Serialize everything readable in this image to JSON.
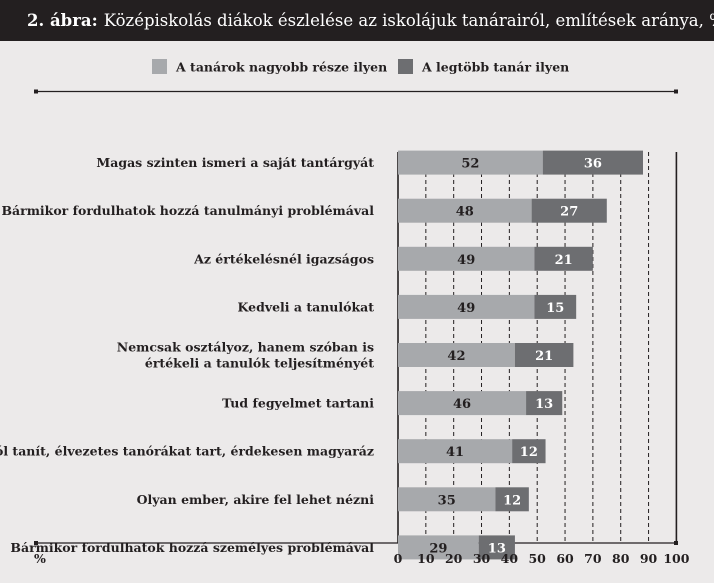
{
  "figure_label": "2. ábra:",
  "title": "Középiskolás diákok észlelése az iskolájuk tanárairól, említések aránya, %",
  "colors": {
    "series1": "#a7a9ac",
    "series2": "#6d6e71",
    "title_bg": "#231f20",
    "panel_bg": "#eceaea"
  },
  "chart_data": {
    "type": "bar",
    "orientation": "horizontal",
    "stacked": true,
    "title": "Középiskolás diákok észlelése az iskolájuk tanárairól, említések aránya, %",
    "xlabel": "%",
    "xlim": [
      0,
      100
    ],
    "xticks": [
      0,
      10,
      20,
      30,
      40,
      50,
      60,
      70,
      80,
      90,
      100
    ],
    "grid": true,
    "legend_position": "top",
    "categories": [
      "Magas szinten ismeri a saját tantárgyát",
      "Bármikor fordulhatok hozzá tanulmányi problémával",
      "Az értékelésnél igazságos",
      "Kedveli a tanulókat",
      "Nemcsak osztályoz, hanem szóban is értékeli a tanulók teljesítményét",
      "Tud fegyelmet tartani",
      "Jól tanít, élvezetes tanórákat tart, érdekesen magyaráz",
      "Olyan ember, akire fel lehet nézni",
      "Bármikor fordulhatok hozzá személyes problémával"
    ],
    "category_lines": [
      [
        "Magas szinten ismeri a saját tantárgyát"
      ],
      [
        "Bármikor fordulhatok hozzá tanulmányi problémával"
      ],
      [
        "Az értékelésnél igazságos"
      ],
      [
        "Kedveli a tanulókat"
      ],
      [
        "Nemcsak osztályoz, hanem szóban is",
        "értékeli a tanulók teljesítményét"
      ],
      [
        "Tud fegyelmet tartani"
      ],
      [
        "Jól tanít, élvezetes tanórákat tart, érdekesen magyaráz"
      ],
      [
        "Olyan ember, akire fel lehet nézni"
      ],
      [
        "Bármikor fordulhatok hozzá személyes problémával"
      ]
    ],
    "series": [
      {
        "name": "A tanárok nagyobb része ilyen",
        "values": [
          52,
          48,
          49,
          49,
          42,
          46,
          41,
          35,
          29
        ]
      },
      {
        "name": "A legtöbb tanár ilyen",
        "values": [
          36,
          27,
          21,
          15,
          21,
          13,
          12,
          12,
          13
        ]
      }
    ]
  }
}
